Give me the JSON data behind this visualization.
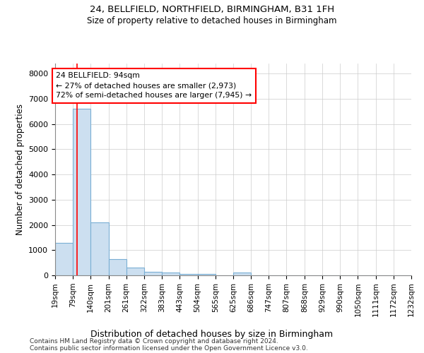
{
  "title1": "24, BELLFIELD, NORTHFIELD, BIRMINGHAM, B31 1FH",
  "title2": "Size of property relative to detached houses in Birmingham",
  "xlabel": "Distribution of detached houses by size in Birmingham",
  "ylabel": "Number of detached properties",
  "bar_color": "#ccdff0",
  "bar_edge_color": "#7aafd4",
  "red_line_x": 94,
  "annotation_line1": "24 BELLFIELD: 94sqm",
  "annotation_line2": "← 27% of detached houses are smaller (2,973)",
  "annotation_line3": "72% of semi-detached houses are larger (7,945) →",
  "bin_edges": [
    19,
    79,
    140,
    201,
    261,
    322,
    383,
    443,
    504,
    565,
    625,
    686,
    747,
    807,
    868,
    929,
    990,
    1050,
    1111,
    1172,
    1232
  ],
  "bar_heights": [
    1300,
    6600,
    2100,
    650,
    300,
    150,
    100,
    70,
    50,
    0,
    100,
    0,
    0,
    0,
    0,
    0,
    0,
    0,
    0,
    0
  ],
  "ylim": [
    0,
    8400
  ],
  "yticks": [
    0,
    1000,
    2000,
    3000,
    4000,
    5000,
    6000,
    7000,
    8000
  ],
  "footer1": "Contains HM Land Registry data © Crown copyright and database right 2024.",
  "footer2": "Contains public sector information licensed under the Open Government Licence v3.0."
}
